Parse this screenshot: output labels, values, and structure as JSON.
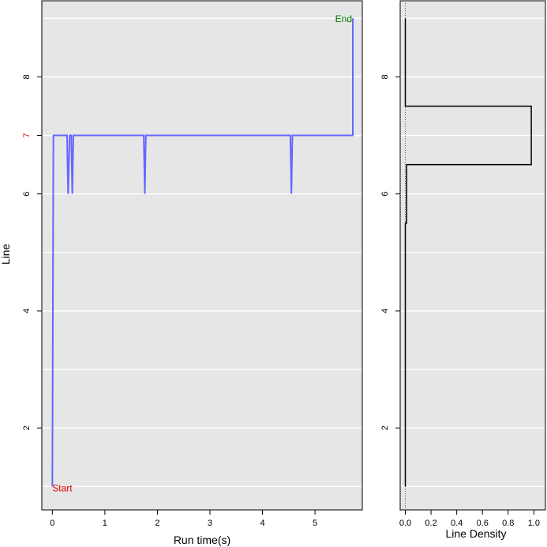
{
  "colors": {
    "panel_bg": "#e6e6e6",
    "grid": "#ffffff",
    "trace_line": "#6666ff",
    "density_line": "#000000",
    "start_label": "#e00000",
    "end_label": "#007700",
    "highlight_tick": "#e00000"
  },
  "chart_data": [
    {
      "type": "line",
      "panel": "trace",
      "xlabel": "Run time(s)",
      "ylabel": "Line",
      "xlim": [
        -0.2,
        5.9
      ],
      "ylim": [
        0.6,
        9.3
      ],
      "x_ticks": [
        0,
        1,
        2,
        3,
        4,
        5
      ],
      "x_tick_labels": [
        "0",
        "1",
        "2",
        "3",
        "4",
        "5"
      ],
      "y_ticks": [
        2,
        4,
        6,
        7,
        8
      ],
      "y_tick_labels": [
        "2",
        "4",
        "6",
        "7",
        "8"
      ],
      "highlighted_y_tick": 7,
      "gridlines_y": [
        1,
        2,
        3,
        4,
        5,
        6,
        7,
        8,
        9
      ],
      "x": [
        0.0,
        0.02,
        0.28,
        0.3,
        0.33,
        0.36,
        0.38,
        0.4,
        1.74,
        1.76,
        1.78,
        4.53,
        4.55,
        4.57,
        5.72,
        5.72
      ],
      "y": [
        1,
        7,
        7,
        6,
        7,
        7,
        6,
        7,
        7,
        6,
        7,
        7,
        6,
        7,
        7,
        9
      ],
      "annotations": [
        {
          "text": "Start",
          "x": 0.0,
          "y": 1,
          "color": "#e00000"
        },
        {
          "text": "End",
          "x": 5.72,
          "y": 9,
          "color": "#007700"
        }
      ]
    },
    {
      "type": "line",
      "panel": "density",
      "xlabel": "Line Density",
      "xlim": [
        -0.04,
        1.09
      ],
      "ylim": [
        0.6,
        9.3
      ],
      "x_ticks": [
        0.0,
        0.2,
        0.4,
        0.6,
        0.8,
        1.0
      ],
      "x_tick_labels": [
        "0.0",
        "0.2",
        "0.4",
        "0.6",
        "0.8",
        "1.0"
      ],
      "y_ticks": [
        2,
        4,
        6,
        8
      ],
      "y_tick_labels": [
        "2",
        "4",
        "6",
        "8"
      ],
      "gridlines_y": [
        1,
        2,
        3,
        4,
        5,
        6,
        7,
        8,
        9
      ],
      "reference_line_x": 0,
      "density_x": [
        0,
        0,
        0.01,
        0.01,
        0.02,
        0.02,
        0.98,
        0.98,
        0,
        0
      ],
      "density_y": [
        1,
        5.5,
        5.5,
        6.5,
        6.5,
        6.5,
        6.5,
        7.5,
        7.5,
        9
      ]
    }
  ]
}
